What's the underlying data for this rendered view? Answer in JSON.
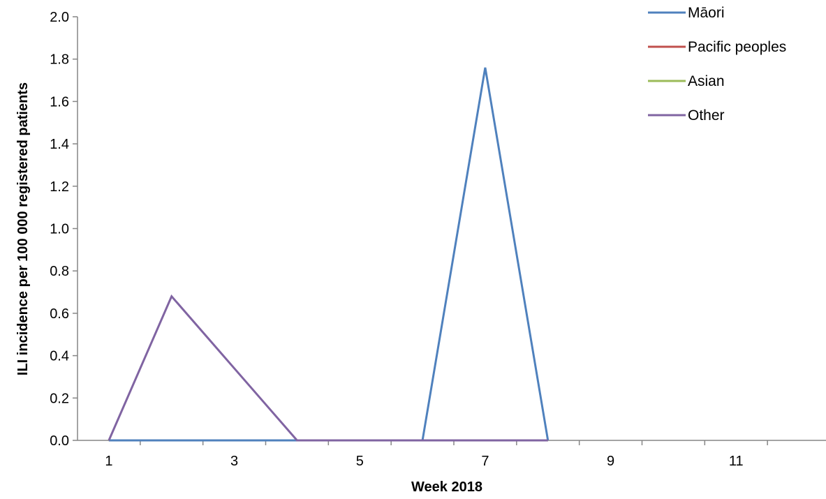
{
  "chart_data": {
    "type": "line",
    "title": "",
    "xlabel": "Week 2018",
    "ylabel": "ILI incidence per 100 000 registered patients",
    "x": [
      1,
      2,
      3,
      4,
      5,
      6,
      7,
      8,
      9,
      10,
      11,
      12
    ],
    "x_tick_labels": [
      "1",
      "3",
      "5",
      "7",
      "9",
      "11"
    ],
    "y_tick_labels": [
      "0.0",
      "0.2",
      "0.4",
      "0.6",
      "0.8",
      "1.0",
      "1.2",
      "1.4",
      "1.6",
      "1.8",
      "2.0"
    ],
    "ylim": [
      0,
      2.0
    ],
    "grid": false,
    "legend_position": "top-right",
    "series": [
      {
        "name": "Māori",
        "color": "#4F81BD",
        "values": [
          0,
          0,
          0,
          0,
          0,
          0,
          1.76,
          0,
          null,
          null,
          null,
          null
        ]
      },
      {
        "name": "Pacific peoples",
        "color": "#C0504D",
        "values": [
          0,
          0,
          0,
          0,
          0,
          0,
          0,
          0,
          null,
          null,
          null,
          null
        ]
      },
      {
        "name": "Asian",
        "color": "#9BBB59",
        "values": [
          0,
          0,
          0,
          0,
          0,
          0,
          0,
          0,
          null,
          null,
          null,
          null
        ]
      },
      {
        "name": "Other",
        "color": "#8064A2",
        "values": [
          0,
          0.68,
          0.34,
          0,
          0,
          0,
          0,
          0,
          null,
          null,
          null,
          null
        ]
      }
    ]
  }
}
